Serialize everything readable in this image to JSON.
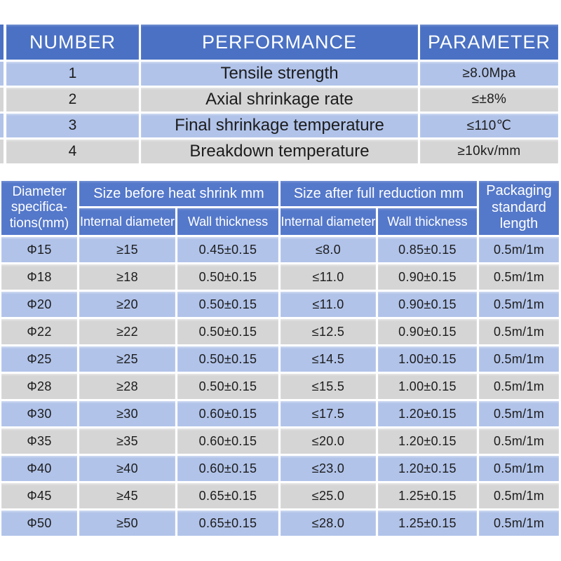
{
  "colors": {
    "top-header-bg": "#4a71c4",
    "bottom-header-bg": "#5478ca",
    "row-blue": "#b1c3e9",
    "row-gray": "#d5d5d5",
    "header-text": "#ffffff",
    "cell-text": "#1c1c1c"
  },
  "performance_table": {
    "columns": [
      "NUMBER",
      "PERFORMANCE",
      "PARAMETER"
    ],
    "rows": [
      [
        "1",
        "Tensile strength",
        "≥8.0Mpa"
      ],
      [
        "2",
        "Axial shrinkage rate",
        "≤±8%"
      ],
      [
        "3",
        "Final shrinkage temperature",
        "≤110℃"
      ],
      [
        "4",
        "Breakdown temperature",
        "≥10kv/mm"
      ]
    ]
  },
  "spec_table": {
    "col_diameter": "Diameter specifica-tions(mm)",
    "group_before": "Size before heat shrink mm",
    "group_after": "Size after full reduction mm",
    "col_packaging": "Packaging standard length",
    "sub_internal_1": "Internal diameter",
    "sub_wall_1": "Wall thickness",
    "sub_internal_2": "Internal diameter",
    "sub_wall_2": "Wall thickness",
    "rows": [
      [
        "Φ15",
        "≥15",
        "0.45±0.15",
        "≤8.0",
        "0.85±0.15",
        "0.5m/1m"
      ],
      [
        "Φ18",
        "≥18",
        "0.50±0.15",
        "≤11.0",
        "0.90±0.15",
        "0.5m/1m"
      ],
      [
        "Φ20",
        "≥20",
        "0.50±0.15",
        "≤11.0",
        "0.90±0.15",
        "0.5m/1m"
      ],
      [
        "Φ22",
        "≥22",
        "0.50±0.15",
        "≤12.5",
        "0.90±0.15",
        "0.5m/1m"
      ],
      [
        "Φ25",
        "≥25",
        "0.50±0.15",
        "≤14.5",
        "1.00±0.15",
        "0.5m/1m"
      ],
      [
        "Φ28",
        "≥28",
        "0.50±0.15",
        "≤15.5",
        "1.00±0.15",
        "0.5m/1m"
      ],
      [
        "Φ30",
        "≥30",
        "0.60±0.15",
        "≤17.5",
        "1.20±0.15",
        "0.5m/1m"
      ],
      [
        "Φ35",
        "≥35",
        "0.60±0.15",
        "≤20.0",
        "1.20±0.15",
        "0.5m/1m"
      ],
      [
        "Φ40",
        "≥40",
        "0.60±0.15",
        "≤23.0",
        "1.20±0.15",
        "0.5m/1m"
      ],
      [
        "Φ45",
        "≥45",
        "0.65±0.15",
        "≤25.0",
        "1.25±0.15",
        "0.5m/1m"
      ],
      [
        "Φ50",
        "≥50",
        "0.65±0.15",
        "≤28.0",
        "1.25±0.15",
        "0.5m/1m"
      ]
    ]
  }
}
